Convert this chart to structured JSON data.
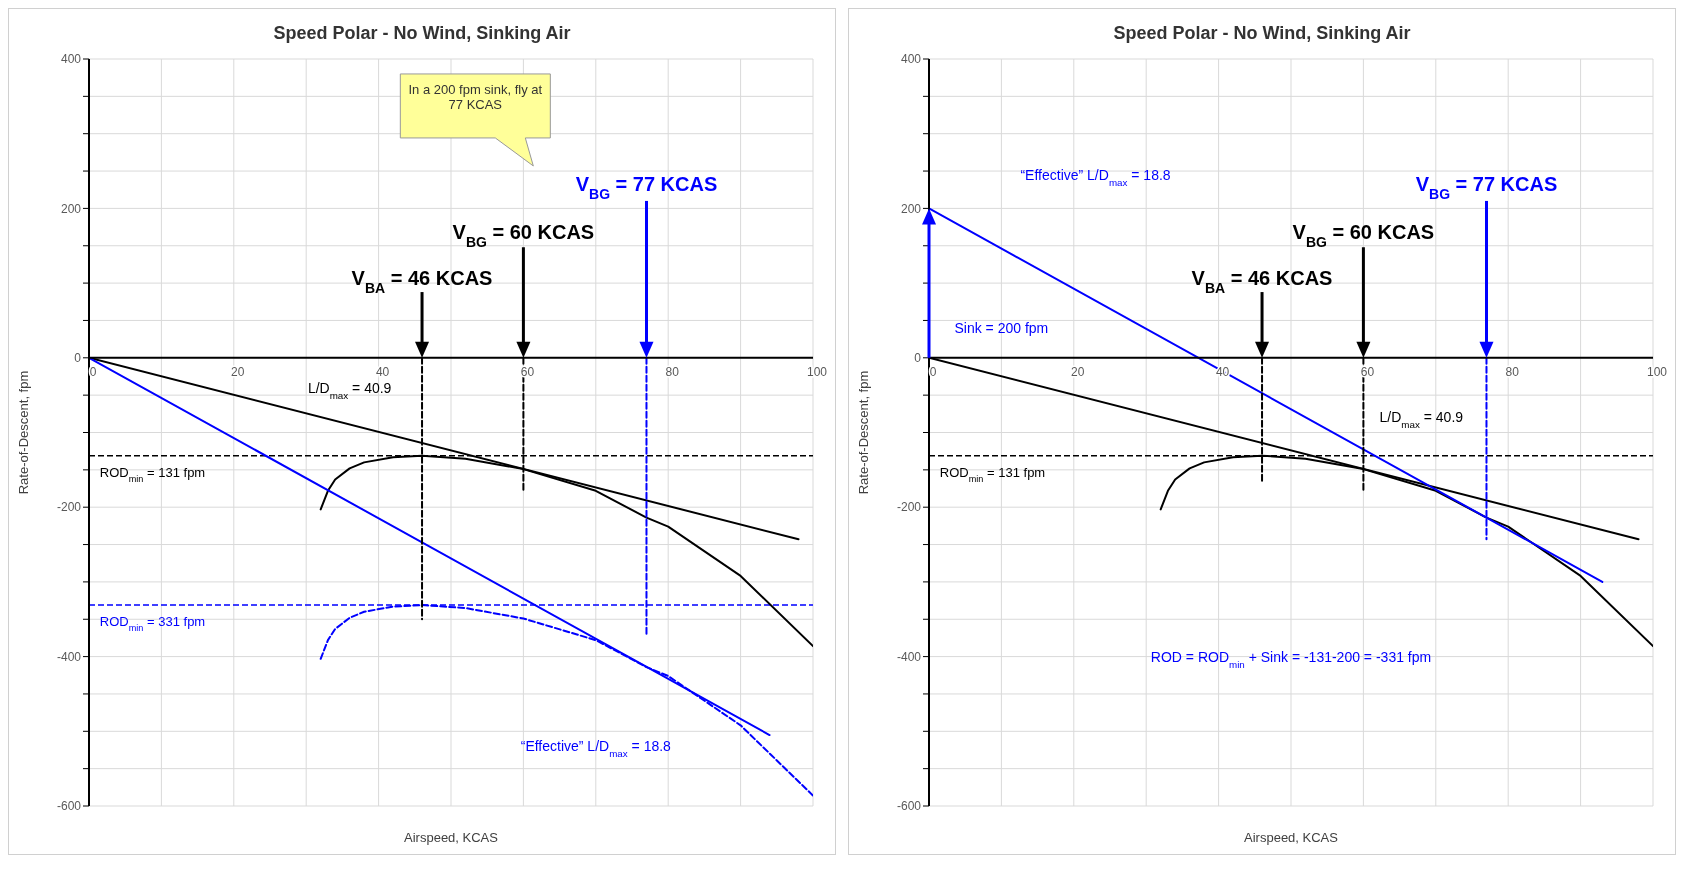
{
  "chart_data": [
    {
      "type": "line",
      "title": "Speed Polar - No Wind, Sinking Air",
      "xlabel": "Airspeed, KCAS",
      "ylabel": "Rate-of-Descent, fpm",
      "xlim": [
        0,
        100
      ],
      "xticks": [
        0,
        {
          "value": 10,
          "label": null
        },
        20,
        {
          "value": 30,
          "label": null
        },
        40,
        {
          "value": 50,
          "label": null
        },
        60,
        {
          "value": 70,
          "label": null
        },
        80,
        {
          "value": 90,
          "label": null
        },
        100
      ],
      "ylim": [
        -600,
        400
      ],
      "yticks": [
        -600,
        {
          "value": -550,
          "label": null
        },
        {
          "value": -500,
          "label": null
        },
        {
          "value": -450,
          "label": null
        },
        -400,
        {
          "value": -350,
          "label": null
        },
        {
          "value": -300,
          "label": null
        },
        {
          "value": -250,
          "label": null
        },
        -200,
        {
          "value": -150,
          "label": null
        },
        {
          "value": -100,
          "label": null
        },
        {
          "value": -50,
          "label": null
        },
        0,
        {
          "value": 50,
          "label": null
        },
        {
          "value": 100,
          "label": null
        },
        {
          "value": 150,
          "label": null
        },
        200,
        {
          "value": 250,
          "label": null
        },
        {
          "value": 300,
          "label": null
        },
        {
          "value": 350,
          "label": null
        },
        400
      ],
      "grid": true,
      "series": [
        {
          "color": "#000000",
          "x": [
            32,
            33,
            34,
            36,
            38,
            42,
            46,
            52,
            60,
            70,
            77,
            80,
            90,
            100
          ],
          "values": [
            -203,
            -178,
            -163,
            -148,
            -140,
            -133,
            -131,
            -135,
            -149,
            -178,
            -214,
            -226,
            -292,
            -386
          ]
        },
        {
          "color": "#0000ff",
          "line_style": "dashed",
          "x": [
            32,
            33,
            34,
            36,
            38,
            42,
            46,
            52,
            60,
            70,
            77,
            80,
            90,
            100
          ],
          "values": [
            -403,
            -378,
            -363,
            -348,
            -340,
            -333,
            -331,
            -335,
            -349,
            -378,
            -414,
            -426,
            -492,
            -586
          ]
        },
        {
          "color": "#000000",
          "x": [
            0,
            98
          ],
          "values": [
            0,
            -243
          ]
        },
        {
          "color": "#0000ff",
          "x": [
            0,
            94
          ],
          "values": [
            0,
            -505
          ]
        },
        {
          "color": "#000000",
          "line_style": "dashed",
          "x": [
            46,
            46
          ],
          "values": [
            0,
            -350
          ]
        },
        {
          "color": "#000000",
          "line_style": "dashed",
          "x": [
            60,
            60
          ],
          "values": [
            0,
            -180
          ]
        },
        {
          "color": "#0000ff",
          "line_style": "dashed",
          "x": [
            77,
            77
          ],
          "values": [
            0,
            -370
          ]
        }
      ],
      "ref_lines": [
        {
          "axis": "y",
          "value": -131,
          "color": "#000000",
          "line_style": "dashed"
        },
        {
          "axis": "y",
          "value": -331,
          "color": "#0000ff",
          "line_style": "dashed"
        }
      ],
      "annotations": [
        "In a 200 fpm sink, fly at 77 KCAS",
        "V$_{BA}$ = 46 KCAS",
        "V$_{BG}$ = 60 KCAS",
        "V$_{BG}$ = 77 KCAS",
        "L/D$_{max}$ = 40.9",
        "“Effective” L/D$_{max}$ = 18.8",
        "ROD$_{min}$ = 131 fpm",
        "ROD$_{min}$ = 331 fpm"
      ]
    },
    {
      "type": "line",
      "title": "Speed Polar - No Wind, Sinking Air",
      "xlabel": "Airspeed, KCAS",
      "ylabel": "Rate-of-Descent, fpm",
      "xlim": [
        0,
        100
      ],
      "xticks": [
        0,
        {
          "value": 10,
          "label": null
        },
        20,
        {
          "value": 30,
          "label": null
        },
        40,
        {
          "value": 50,
          "label": null
        },
        60,
        {
          "value": 70,
          "label": null
        },
        80,
        {
          "value": 90,
          "label": null
        },
        100
      ],
      "ylim": [
        -600,
        400
      ],
      "yticks": [
        -600,
        {
          "value": -550,
          "label": null
        },
        {
          "value": -500,
          "label": null
        },
        {
          "value": -450,
          "label": null
        },
        -400,
        {
          "value": -350,
          "label": null
        },
        {
          "value": -300,
          "label": null
        },
        {
          "value": -250,
          "label": null
        },
        -200,
        {
          "value": -150,
          "label": null
        },
        {
          "value": -100,
          "label": null
        },
        {
          "value": -50,
          "label": null
        },
        0,
        {
          "value": 50,
          "label": null
        },
        {
          "value": 100,
          "label": null
        },
        {
          "value": 150,
          "label": null
        },
        200,
        {
          "value": 250,
          "label": null
        },
        {
          "value": 300,
          "label": null
        },
        {
          "value": 350,
          "label": null
        },
        400
      ],
      "grid": true,
      "series": [
        {
          "color": "#000000",
          "x": [
            32,
            33,
            34,
            36,
            38,
            42,
            46,
            52,
            60,
            70,
            77,
            80,
            90,
            100
          ],
          "values": [
            -203,
            -178,
            -163,
            -148,
            -140,
            -133,
            -131,
            -135,
            -149,
            -178,
            -214,
            -226,
            -292,
            -386
          ]
        },
        {
          "color": "#000000",
          "x": [
            0,
            98
          ],
          "values": [
            0,
            -243
          ]
        },
        {
          "color": "#0000ff",
          "x": [
            0,
            93
          ],
          "values": [
            200,
            -300
          ]
        },
        {
          "color": "#000000",
          "line_style": "dashed",
          "x": [
            46,
            46
          ],
          "values": [
            0,
            -167
          ]
        },
        {
          "color": "#000000",
          "line_style": "dashed",
          "x": [
            60,
            60
          ],
          "values": [
            0,
            -177
          ]
        },
        {
          "color": "#0000ff",
          "line_style": "dashed",
          "x": [
            77,
            77
          ],
          "values": [
            0,
            -243
          ]
        }
      ],
      "ref_lines": [
        {
          "axis": "y",
          "value": -131,
          "color": "#000000",
          "line_style": "dashed"
        }
      ],
      "annotations": [
        "V$_{BA}$ = 46 KCAS",
        "V$_{BG}$ = 60 KCAS",
        "V$_{BG}$ = 77 KCAS",
        "L/D$_{max}$ = 40.9",
        "“Effective” L/D$_{max}$ = 18.8",
        "Sink = 200 fpm",
        "ROD = ROD$_{min}$ + Sink = -131-200 = -331 fpm",
        "ROD$_{min}$ = 131 fpm"
      ]
    }
  ]
}
